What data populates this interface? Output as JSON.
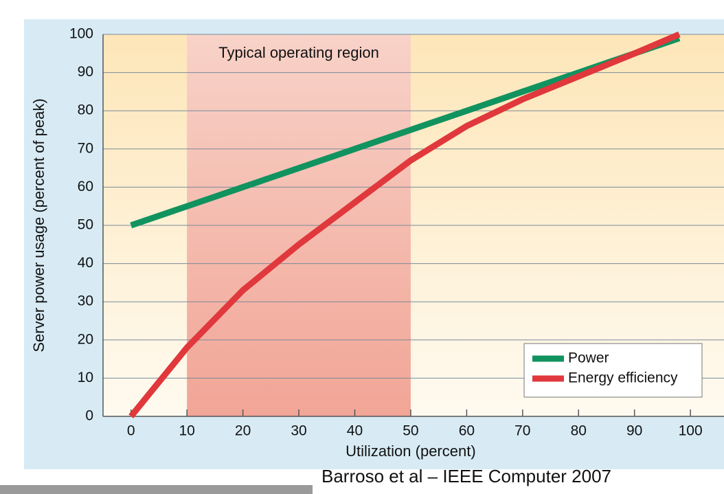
{
  "chart_data": {
    "type": "line",
    "x_label": "Utilization (percent)",
    "y_label": "Server power usage (percent of peak)",
    "xlim": [
      -5,
      106
    ],
    "ylim": [
      0,
      100
    ],
    "xticks": [
      0,
      10,
      20,
      30,
      40,
      50,
      60,
      70,
      80,
      90,
      100
    ],
    "yticks": [
      0,
      10,
      20,
      30,
      40,
      50,
      60,
      70,
      80,
      90,
      100
    ],
    "grid": true,
    "shaded_region": {
      "label": "Typical operating region",
      "x": [
        10,
        50
      ]
    },
    "x": [
      0,
      10,
      20,
      30,
      40,
      50,
      60,
      70,
      80,
      90,
      98
    ],
    "series": [
      {
        "name": "Power",
        "color": "#11935f",
        "values": [
          50,
          55,
          60,
          65,
          70,
          75,
          80,
          85,
          90,
          95,
          99
        ]
      },
      {
        "name": "Energy efficiency",
        "color": "#e0383c",
        "values": [
          0,
          18,
          33,
          45,
          56,
          67,
          76,
          83,
          89,
          95,
          100
        ]
      }
    ],
    "legend": "lower right",
    "source": "Barroso et al – IEEE Computer 2007"
  }
}
